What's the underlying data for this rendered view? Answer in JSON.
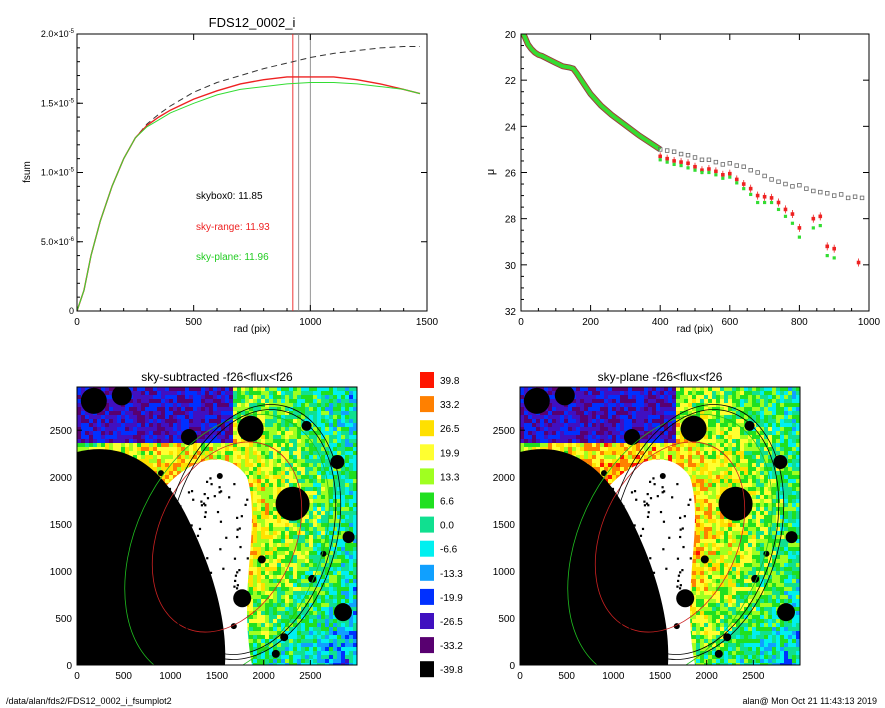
{
  "colors": {
    "red": "#ee2222",
    "green": "#33dd33",
    "gray": "#555555",
    "dashed": "#333333",
    "axis": "#000000"
  },
  "footer": {
    "path": "/data/alan/fds2/FDS12_0002_i_fsumplot2",
    "timestamp": "alan@  Mon Oct 21 11:43:13 2019"
  },
  "chart_data": [
    {
      "type": "line",
      "title": "FDS12_0002_i",
      "xlabel": "rad (pix)",
      "ylabel": "fsum",
      "xlim": [
        0,
        1500
      ],
      "ylim": [
        0,
        2e-05
      ],
      "x_ticks": [
        "0",
        "500",
        "1000",
        "1500"
      ],
      "y_ticks": [
        {
          "mant": "0",
          "exp": ""
        },
        {
          "mant": "5.0×10",
          "exp": "-6"
        },
        {
          "mant": "1.0×10",
          "exp": "-5"
        },
        {
          "mant": "1.5×10",
          "exp": "-5"
        },
        {
          "mant": "2.0×10",
          "exp": "-5"
        }
      ],
      "annotations": [
        "skybox0: 11.85",
        "sky-range: 11.93",
        "sky-plane: 11.96"
      ],
      "vlines": [
        {
          "x": 925,
          "color": "red"
        },
        {
          "x": 950,
          "color": "gray"
        },
        {
          "x": 1000,
          "color": "gray"
        }
      ],
      "series": [
        {
          "color": "dashed",
          "x": [
            0,
            30,
            60,
            100,
            150,
            200,
            250,
            300,
            350,
            400,
            500,
            600,
            700,
            800,
            900,
            1000,
            1100,
            1200,
            1300,
            1400,
            1470
          ],
          "y": [
            0,
            1.5e-06,
            4e-06,
            6.5e-06,
            9e-06,
            1.1e-05,
            1.25e-05,
            1.35e-05,
            1.42e-05,
            1.48e-05,
            1.58e-05,
            1.65e-05,
            1.7e-05,
            1.75e-05,
            1.79e-05,
            1.83e-05,
            1.86e-05,
            1.88e-05,
            1.9e-05,
            1.91e-05,
            1.91e-05
          ]
        },
        {
          "color": "red",
          "x": [
            0,
            30,
            60,
            100,
            150,
            200,
            250,
            300,
            350,
            400,
            500,
            600,
            700,
            800,
            900,
            1000,
            1100,
            1200,
            1300,
            1400,
            1470
          ],
          "y": [
            0,
            1.5e-06,
            4e-06,
            6.5e-06,
            9e-06,
            1.1e-05,
            1.25e-05,
            1.34e-05,
            1.4e-05,
            1.45e-05,
            1.53e-05,
            1.59e-05,
            1.64e-05,
            1.67e-05,
            1.69e-05,
            1.69e-05,
            1.69e-05,
            1.67e-05,
            1.64e-05,
            1.6e-05,
            1.57e-05
          ]
        },
        {
          "color": "green",
          "x": [
            0,
            30,
            60,
            100,
            150,
            200,
            250,
            300,
            350,
            400,
            500,
            600,
            700,
            800,
            900,
            1000,
            1100,
            1200,
            1300,
            1400,
            1470
          ],
          "y": [
            0,
            1.5e-06,
            4e-06,
            6.5e-06,
            9e-06,
            1.1e-05,
            1.25e-05,
            1.33e-05,
            1.38e-05,
            1.43e-05,
            1.5e-05,
            1.56e-05,
            1.6e-05,
            1.62e-05,
            1.64e-05,
            1.65e-05,
            1.65e-05,
            1.64e-05,
            1.62e-05,
            1.6e-05,
            1.57e-05
          ]
        }
      ]
    },
    {
      "type": "scatter",
      "title": "",
      "xlabel": "rad (pix)",
      "ylabel": "μ",
      "xlim": [
        0,
        1000
      ],
      "ylim": [
        32,
        20
      ],
      "x_ticks": [
        "0",
        "200",
        "400",
        "600",
        "800",
        "1000"
      ],
      "y_ticks": [
        "20",
        "22",
        "24",
        "26",
        "28",
        "30",
        "32"
      ],
      "series": [
        {
          "color": "gray",
          "x": [
            400,
            420,
            440,
            460,
            480,
            500,
            520,
            540,
            560,
            580,
            600,
            620,
            640,
            660,
            680,
            700,
            720,
            740,
            760,
            780,
            800,
            820,
            840,
            860,
            880,
            900,
            920,
            940,
            960,
            980
          ],
          "y": [
            25.0,
            25.05,
            25.1,
            25.2,
            25.25,
            25.35,
            25.45,
            25.45,
            25.55,
            25.65,
            25.6,
            25.7,
            25.75,
            25.9,
            26.0,
            26.15,
            26.3,
            26.4,
            26.5,
            26.6,
            26.55,
            26.7,
            26.8,
            26.85,
            26.9,
            27.0,
            26.95,
            27.1,
            27.05,
            27.1
          ]
        },
        {
          "color": "red",
          "x": [
            400,
            420,
            440,
            460,
            480,
            500,
            520,
            540,
            560,
            580,
            600,
            620,
            640,
            660,
            680,
            700,
            720,
            740,
            760,
            780,
            800,
            840,
            860,
            880,
            900,
            970
          ],
          "y": [
            25.3,
            25.4,
            25.5,
            25.55,
            25.6,
            25.75,
            25.9,
            25.85,
            25.95,
            26.1,
            26.05,
            26.3,
            26.5,
            26.7,
            27.0,
            27.05,
            27.1,
            27.3,
            27.6,
            27.8,
            28.4,
            28.0,
            27.9,
            29.2,
            29.3,
            29.9
          ]
        },
        {
          "color": "green",
          "x": [
            400,
            420,
            440,
            460,
            480,
            500,
            520,
            540,
            560,
            580,
            600,
            620,
            640,
            660,
            680,
            700,
            720,
            740,
            760,
            780,
            800,
            840,
            860,
            880,
            900
          ],
          "y": [
            25.45,
            25.55,
            25.65,
            25.7,
            25.8,
            25.9,
            26.0,
            26.0,
            26.1,
            26.25,
            26.2,
            26.45,
            26.7,
            26.95,
            27.3,
            27.3,
            27.3,
            27.6,
            27.9,
            28.2,
            28.8,
            28.4,
            28.3,
            29.6,
            29.7
          ]
        }
      ],
      "curve": {
        "x": [
          0,
          10,
          20,
          30,
          40,
          50,
          60,
          80,
          100,
          120,
          140,
          150,
          160,
          180,
          200,
          230,
          260,
          300,
          340,
          380,
          400
        ],
        "y": [
          19.8,
          20.1,
          20.45,
          20.65,
          20.8,
          20.9,
          20.95,
          21.1,
          21.25,
          21.4,
          21.45,
          21.5,
          21.7,
          22.15,
          22.6,
          23.1,
          23.5,
          23.95,
          24.4,
          24.8,
          25.0
        ]
      }
    },
    {
      "type": "heatmap",
      "title": "sky-subtracted -f26<flux<f26",
      "xlim": [
        0,
        3000
      ],
      "ylim": [
        0,
        2960
      ],
      "x_ticks": [
        "0",
        "500",
        "1000",
        "1500",
        "2000",
        "2500"
      ],
      "y_ticks": [
        "0",
        "500",
        "1000",
        "1500",
        "2000",
        "2500"
      ]
    },
    {
      "type": "heatmap",
      "title": "sky-plane -f26<flux<f26",
      "xlim": [
        0,
        3000
      ],
      "ylim": [
        0,
        2960
      ],
      "x_ticks": [
        "0",
        "500",
        "1000",
        "1500",
        "2000",
        "2500"
      ],
      "y_ticks": [
        "0",
        "500",
        "1000",
        "1500",
        "2000",
        "2500"
      ]
    },
    {
      "type": "colorbar",
      "levels": [
        {
          "label": "39.8",
          "color": "#ff1500"
        },
        {
          "label": "33.2",
          "color": "#ff8000"
        },
        {
          "label": "26.5",
          "color": "#ffe000"
        },
        {
          "label": "19.9",
          "color": "#ffff30"
        },
        {
          "label": "13.3",
          "color": "#a0ff20"
        },
        {
          "label": "6.6",
          "color": "#20e020"
        },
        {
          "label": "0.0",
          "color": "#10e090"
        },
        {
          "label": "-6.6",
          "color": "#00f0f0"
        },
        {
          "label": "-13.3",
          "color": "#10a0ff"
        },
        {
          "label": "-19.9",
          "color": "#0030ff"
        },
        {
          "label": "-26.5",
          "color": "#4010c0"
        },
        {
          "label": "-33.2",
          "color": "#580070"
        },
        {
          "label": "-39.8",
          "color": "#000000"
        }
      ]
    }
  ]
}
